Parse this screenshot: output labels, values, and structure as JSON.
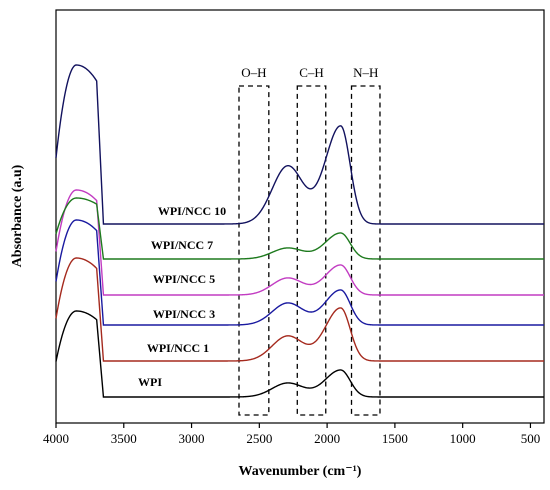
{
  "chart_data": {
    "type": "line",
    "xlabel": "Wavenumber (cm⁻¹)",
    "ylabel": "Absorbance (a.u)",
    "xlim": [
      4000,
      400
    ],
    "x_ticks": [
      "4000",
      "3500",
      "3000",
      "2500",
      "2000",
      "1500",
      "1000",
      "500"
    ],
    "y_ticks_shown": false,
    "grid": false,
    "legend": "none",
    "annotations": [
      {
        "label": "O–H",
        "x_range": [
          2650,
          2430
        ]
      },
      {
        "label": "C–H",
        "x_range": [
          2220,
          2010
        ]
      },
      {
        "label": "N–H",
        "x_range": [
          1820,
          1610
        ]
      }
    ],
    "series": [
      {
        "name": "WPI",
        "color": "#000000",
        "peaks": [
          {
            "x": 3850,
            "height": 0.87
          },
          {
            "x": 2300,
            "height": 0.14
          },
          {
            "x": 1900,
            "height": 0.27
          }
        ]
      },
      {
        "name": "WPI/NCC 1",
        "color": "#a52a1e",
        "peaks": [
          {
            "x": 3850,
            "height": 1.04
          },
          {
            "x": 2300,
            "height": 0.25
          },
          {
            "x": 1900,
            "height": 0.53
          }
        ]
      },
      {
        "name": "WPI/NCC 3",
        "color": "#1a1aa0",
        "peaks": [
          {
            "x": 3850,
            "height": 1.06
          },
          {
            "x": 2300,
            "height": 0.22
          },
          {
            "x": 1900,
            "height": 0.35
          }
        ]
      },
      {
        "name": "WPI/NCC 5",
        "color": "#c23cc2",
        "peaks": [
          {
            "x": 3850,
            "height": 1.06
          },
          {
            "x": 2300,
            "height": 0.17
          },
          {
            "x": 1900,
            "height": 0.3
          }
        ]
      },
      {
        "name": "WPI/NCC 7",
        "color": "#1e7a1e",
        "peaks": [
          {
            "x": 3850,
            "height": 0.62
          },
          {
            "x": 2300,
            "height": 0.11
          },
          {
            "x": 1900,
            "height": 0.26
          }
        ]
      },
      {
        "name": "WPI/NCC 10",
        "color": "#12125e",
        "peaks": [
          {
            "x": 3850,
            "height": 1.6
          },
          {
            "x": 2300,
            "height": 0.58
          },
          {
            "x": 1900,
            "height": 0.98
          }
        ]
      }
    ]
  }
}
